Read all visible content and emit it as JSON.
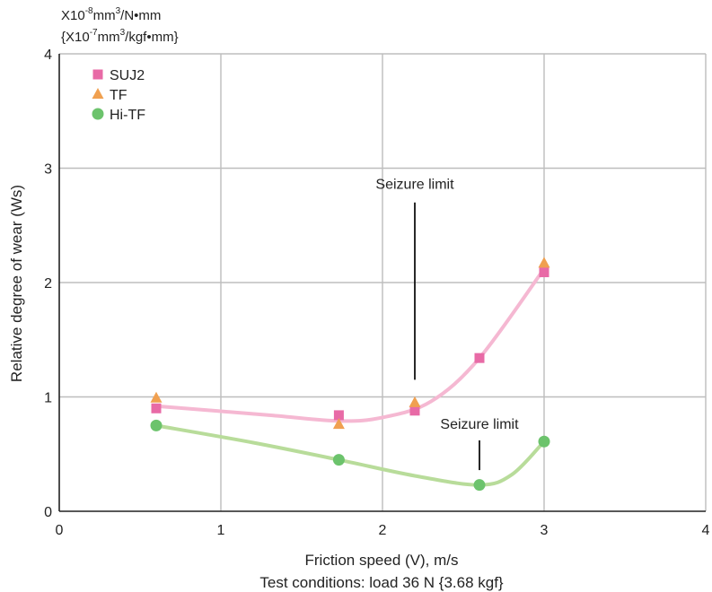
{
  "chart_data": {
    "type": "line",
    "ylabel": "Relative degree of wear (Ws)",
    "xlabel": "Friction speed (V), m/s",
    "footnote": "Test conditions: load 36 N {3.68 kgf}",
    "unit_line1": {
      "a": "X10",
      "b": "-8",
      "c": "mm",
      "d": "3",
      "e": "/N•mm"
    },
    "unit_line2": {
      "a": "{X10",
      "b": "-7",
      "c": "mm",
      "d": "3",
      "e": "/kgf•mm}"
    },
    "xlim": [
      0,
      4
    ],
    "ylim": [
      0,
      4
    ],
    "xticks": [
      "0",
      "1",
      "2",
      "3",
      "4"
    ],
    "yticks": [
      "0",
      "1",
      "2",
      "3",
      "4"
    ],
    "grid": true,
    "legend_position": "top-left",
    "series": [
      {
        "name": "SUJ2",
        "marker": "square",
        "color": "#e86aa6",
        "points": [
          [
            0.6,
            0.9
          ],
          [
            1.73,
            0.84
          ],
          [
            2.2,
            0.88
          ],
          [
            2.6,
            1.34
          ],
          [
            3.0,
            2.09
          ]
        ]
      },
      {
        "name": "TF",
        "marker": "triangle",
        "color": "#f0a050",
        "points": [
          [
            0.6,
            0.99
          ],
          [
            1.73,
            0.76
          ],
          [
            2.2,
            0.95
          ],
          [
            3.0,
            2.17
          ]
        ]
      },
      {
        "name": "Hi-TF",
        "marker": "circle",
        "color": "#6cc36c",
        "points": [
          [
            0.6,
            0.75
          ],
          [
            1.73,
            0.45
          ],
          [
            2.6,
            0.23
          ],
          [
            3.0,
            0.61
          ]
        ]
      }
    ],
    "curves": [
      {
        "for": "SUJ2",
        "color": "#f5b8d2",
        "points": [
          [
            0.6,
            0.92
          ],
          [
            1.3,
            0.84
          ],
          [
            1.73,
            0.79
          ],
          [
            2.0,
            0.82
          ],
          [
            2.3,
            0.96
          ],
          [
            2.6,
            1.34
          ],
          [
            3.0,
            2.12
          ]
        ]
      },
      {
        "for": "Hi-TF",
        "color": "#b8dc9a",
        "points": [
          [
            0.6,
            0.75
          ],
          [
            1.2,
            0.6
          ],
          [
            1.73,
            0.45
          ],
          [
            2.2,
            0.31
          ],
          [
            2.6,
            0.23
          ],
          [
            2.8,
            0.32
          ],
          [
            3.0,
            0.61
          ]
        ]
      }
    ],
    "annotations": [
      {
        "name": "seizure-limit-suj2",
        "text": "Seizure limit",
        "text_x": 2.2,
        "text_y": 2.82,
        "line_x": 2.2,
        "line_from": 2.7,
        "line_to": 1.15
      },
      {
        "name": "seizure-limit-hitf",
        "text": "Seizure limit",
        "text_x": 2.6,
        "text_y": 0.72,
        "line_x": 2.6,
        "line_from": 0.62,
        "line_to": 0.36
      }
    ]
  }
}
